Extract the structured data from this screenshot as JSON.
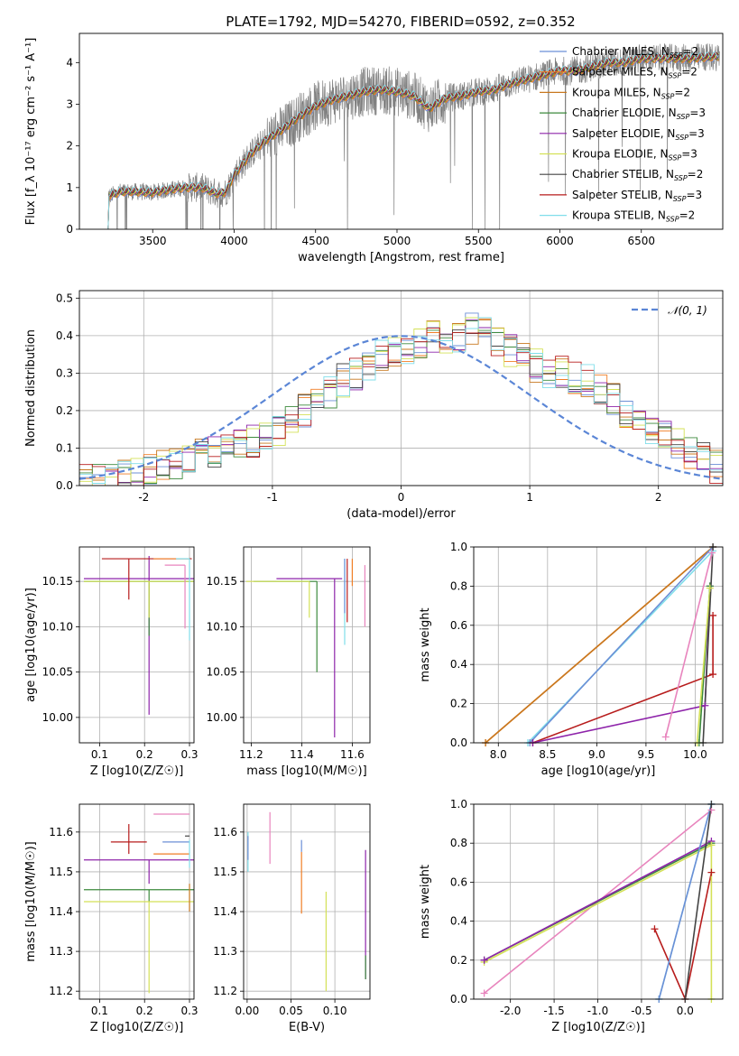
{
  "figure": {
    "title": "PLATE=1792, MJD=54270, FIBERID=0592, z=0.352"
  },
  "colors": {
    "Chabrier MILES": "#6b8fd6",
    "Salpeter MILES": "#f07e26",
    "Kroupa MILES": "#c8781f",
    "Chabrier ELODIE": "#3c8a3c",
    "Salpeter ELODIE": "#8e24aa",
    "Kroupa ELODIE": "#d4e157",
    "Chabrier STELIB": "#444444",
    "Salpeter STELIB": "#b71c1c",
    "Kroupa STELIB": "#80deea",
    "extra": "#e884bd",
    "data": "#808080",
    "normal": "#5b86d6"
  },
  "chart_data": [
    {
      "id": "spectrum",
      "type": "line",
      "title": "PLATE=1792, MJD=54270, FIBERID=0592, z=0.352",
      "xlabel": "wavelength [Angstrom, rest frame]",
      "ylabel": "Flux [f_λ 10⁻¹⁷ erg cm⁻² s⁻¹ A⁻¹]",
      "xlim": [
        3050,
        7000
      ],
      "ylim": [
        0,
        4.7
      ],
      "xticks": [
        3500,
        4000,
        4500,
        5000,
        5500,
        6000,
        6500
      ],
      "yticks": [
        0,
        1,
        2,
        3,
        4
      ],
      "legend_position": "top-right",
      "grid": false,
      "data_start": 3220,
      "data_end": 6980,
      "continuum": [
        [
          3220,
          0.78
        ],
        [
          3300,
          0.9
        ],
        [
          3400,
          0.9
        ],
        [
          3500,
          0.88
        ],
        [
          3600,
          0.95
        ],
        [
          3700,
          1.0
        ],
        [
          3800,
          1.0
        ],
        [
          3900,
          0.85
        ],
        [
          3950,
          0.9
        ],
        [
          4000,
          1.3
        ],
        [
          4100,
          1.8
        ],
        [
          4200,
          2.15
        ],
        [
          4300,
          2.4
        ],
        [
          4400,
          2.7
        ],
        [
          4500,
          2.95
        ],
        [
          4600,
          3.1
        ],
        [
          4700,
          3.2
        ],
        [
          4800,
          3.3
        ],
        [
          4900,
          3.35
        ],
        [
          5000,
          3.3
        ],
        [
          5100,
          3.2
        ],
        [
          5200,
          2.9
        ],
        [
          5300,
          3.15
        ],
        [
          5400,
          3.2
        ],
        [
          5500,
          3.3
        ],
        [
          5600,
          3.35
        ],
        [
          5700,
          3.5
        ],
        [
          5800,
          3.6
        ],
        [
          5900,
          3.7
        ],
        [
          6000,
          3.8
        ],
        [
          6100,
          3.8
        ],
        [
          6200,
          3.9
        ],
        [
          6300,
          4.0
        ],
        [
          6400,
          4.0
        ],
        [
          6500,
          4.1
        ],
        [
          6600,
          4.1
        ],
        [
          6700,
          4.1
        ],
        [
          6800,
          4.1
        ],
        [
          6980,
          4.15
        ]
      ],
      "series": [
        {
          "name": "Chabrier MILES, N_SSP=2"
        },
        {
          "name": "Salpeter MILES, N_SSP=2"
        },
        {
          "name": "Kroupa MILES, N_SSP=2"
        },
        {
          "name": "Chabrier ELODIE, N_SSP=3"
        },
        {
          "name": "Salpeter ELODIE, N_SSP=3"
        },
        {
          "name": "Kroupa ELODIE, N_SSP=3"
        },
        {
          "name": "Chabrier STELIB, N_SSP=2"
        },
        {
          "name": "Salpeter STELIB, N_SSP=3"
        },
        {
          "name": "Kroupa STELIB, N_SSP=2"
        }
      ]
    },
    {
      "id": "residuals",
      "type": "histogram",
      "xlabel": "(data-model)/error",
      "ylabel": "Normed distribution",
      "xlim": [
        -2.5,
        2.5
      ],
      "ylim": [
        0,
        0.52
      ],
      "xticks": [
        -2,
        -1,
        0,
        1,
        2
      ],
      "yticks": [
        0.0,
        0.1,
        0.2,
        0.3,
        0.4,
        0.5
      ],
      "grid": true,
      "legend_position": "top-right",
      "legend_label": "𝒩(0, 1)",
      "bin_width": 0.1,
      "base_profile": [
        0.015,
        0.02,
        0.025,
        0.03,
        0.03,
        0.04,
        0.05,
        0.06,
        0.07,
        0.08,
        0.09,
        0.1,
        0.11,
        0.12,
        0.13,
        0.15,
        0.17,
        0.2,
        0.22,
        0.25,
        0.28,
        0.3,
        0.32,
        0.35,
        0.36,
        0.37,
        0.38,
        0.4,
        0.39,
        0.4,
        0.42,
        0.43,
        0.38,
        0.36,
        0.35,
        0.32,
        0.3,
        0.3,
        0.29,
        0.28,
        0.25,
        0.23,
        0.2,
        0.18,
        0.15,
        0.13,
        0.11,
        0.09,
        0.07,
        0.05
      ]
    },
    {
      "id": "age-vs-Z",
      "type": "errorbar",
      "xlabel": "Z [log10(Z/Z☉)]",
      "ylabel": "age  [log10(age/yr)]",
      "xlim": [
        0.055,
        0.31
      ],
      "ylim": [
        9.972,
        10.188
      ],
      "xticks": [
        0.1,
        0.2,
        0.3
      ],
      "yticks": [
        10.0,
        10.05,
        10.1,
        10.15
      ],
      "grid": true,
      "points": [
        {
          "model": "Salpeter ELODIE",
          "x": 0.21,
          "y": 10.153,
          "xerr": 0.145,
          "yerr": [
            0.15,
            0.025
          ]
        },
        {
          "model": "Chabrier ELODIE",
          "x": 0.21,
          "y": 10.15,
          "xerr": 0.145,
          "yerr": [
            0.06,
            0.0
          ]
        },
        {
          "model": "Kroupa ELODIE",
          "x": 0.21,
          "y": 10.15,
          "xerr": 0.145,
          "yerr": [
            0.04,
            0.0
          ]
        },
        {
          "model": "Salpeter STELIB",
          "x": 0.165,
          "y": 10.175,
          "xerr": [
            0.06,
            0.14
          ],
          "yerr": [
            0.045,
            0.0
          ]
        },
        {
          "model": "Salpeter MILES",
          "x": 0.26,
          "y": 10.175,
          "xerr": [
            0.04,
            0.04
          ],
          "yerr": [
            0.0,
            0.0
          ]
        },
        {
          "model": "extra",
          "x": 0.29,
          "y": 10.168,
          "xerr": [
            0.045,
            0.0
          ],
          "yerr": [
            0.07,
            0.0
          ]
        },
        {
          "model": "Kroupa STELIB",
          "x": 0.3,
          "y": 10.175,
          "xerr": [
            0.03,
            0.0
          ],
          "yerr": [
            0.09,
            0.0
          ]
        }
      ]
    },
    {
      "id": "age-vs-mass",
      "type": "errorbar",
      "xlabel": "mass [log10(M/M☉)]",
      "ylabel": "",
      "xlim": [
        11.17,
        11.67
      ],
      "ylim": [
        9.972,
        10.188
      ],
      "xticks": [
        11.2,
        11.4,
        11.6
      ],
      "yticks": [
        10.0,
        10.05,
        10.1,
        10.15
      ],
      "grid": true,
      "points": [
        {
          "model": "Salpeter ELODIE",
          "x": 11.53,
          "y": 10.153,
          "xerr": [
            0.23,
            0.03
          ],
          "yerr": [
            0.175,
            0.0
          ]
        },
        {
          "model": "Chabrier ELODIE",
          "x": 11.46,
          "y": 10.15,
          "xerr": [
            0.25,
            0.0
          ],
          "yerr": [
            0.1,
            0.0
          ]
        },
        {
          "model": "Kroupa ELODIE",
          "x": 11.43,
          "y": 10.15,
          "xerr": [
            0.25,
            0.0
          ],
          "yerr": [
            0.04,
            0.0
          ]
        },
        {
          "model": "Salpeter STELIB",
          "x": 11.58,
          "y": 10.175,
          "xerr": [
            0.0,
            0.0
          ],
          "yerr": [
            0.07,
            0.0
          ]
        },
        {
          "model": "Salpeter MILES",
          "x": 11.6,
          "y": 10.175,
          "xerr": [
            0.0,
            0.0
          ],
          "yerr": [
            0.03,
            0.0
          ]
        },
        {
          "model": "extra",
          "x": 11.65,
          "y": 10.168,
          "xerr": [
            0.0,
            0.0
          ],
          "yerr": [
            0.068,
            0.0
          ]
        },
        {
          "model": "Kroupa STELIB",
          "x": 11.57,
          "y": 10.175,
          "xerr": [
            0.0,
            0.0
          ],
          "yerr": [
            0.095,
            0.0
          ]
        },
        {
          "model": "Chabrier MILES",
          "x": 11.57,
          "y": 10.175,
          "xerr": [
            0.0,
            0.0
          ],
          "yerr": [
            0.06,
            0.0
          ]
        }
      ]
    },
    {
      "id": "weight-vs-age",
      "type": "line",
      "xlabel": "age  [log10(age/yr)]",
      "ylabel": "mass weight",
      "xlim": [
        7.75,
        10.28
      ],
      "ylim": [
        0.0,
        1.0
      ],
      "xticks": [
        8.0,
        8.5,
        9.0,
        9.5,
        10.0
      ],
      "yticks": [
        0.0,
        0.2,
        0.4,
        0.6,
        0.8,
        1.0
      ],
      "grid": true,
      "series": [
        {
          "model": "Salpeter MILES",
          "x": [
            7.87,
            10.18
          ],
          "y": [
            0.0,
            1.0
          ]
        },
        {
          "model": "Kroupa MILES",
          "x": [
            7.87,
            10.18
          ],
          "y": [
            0.0,
            1.0
          ]
        },
        {
          "model": "Kroupa STELIB",
          "x": [
            8.3,
            10.18
          ],
          "y": [
            0.0,
            0.98
          ]
        },
        {
          "model": "Chabrier MILES",
          "x": [
            8.32,
            10.18
          ],
          "y": [
            0.0,
            1.0
          ]
        },
        {
          "model": "Salpeter STELIB",
          "x": [
            8.35,
            10.18,
            10.18
          ],
          "y": [
            0.0,
            0.35,
            0.65
          ]
        },
        {
          "model": "Salpeter ELODIE",
          "x": [
            8.35,
            10.1,
            10.15
          ],
          "y": [
            0.0,
            0.19,
            0.8
          ]
        },
        {
          "model": "extra",
          "x": [
            9.7,
            10.17
          ],
          "y": [
            0.03,
            0.97
          ]
        },
        {
          "model": "Chabrier ELODIE",
          "x": [
            10.04,
            10.15
          ],
          "y": [
            0.0,
            0.8
          ]
        },
        {
          "model": "Kroupa ELODIE",
          "x": [
            10.02,
            10.15
          ],
          "y": [
            0.0,
            0.79
          ]
        },
        {
          "model": "Chabrier STELIB",
          "x": [
            10.08,
            10.18
          ],
          "y": [
            0.0,
            1.0
          ]
        }
      ]
    },
    {
      "id": "mass-vs-Z",
      "type": "errorbar",
      "xlabel": "Z [log10(Z/Z☉)]",
      "ylabel": "mass [log10(M/M☉)]",
      "xlim": [
        0.055,
        0.31
      ],
      "ylim": [
        11.18,
        11.67
      ],
      "xticks": [
        0.1,
        0.2,
        0.3
      ],
      "yticks": [
        11.2,
        11.3,
        11.4,
        11.5,
        11.6
      ],
      "grid": true,
      "points": [
        {
          "model": "Salpeter ELODIE",
          "x": 0.21,
          "y": 11.53,
          "xerr": 0.145,
          "yerr": [
            0.06,
            0.0
          ]
        },
        {
          "model": "Chabrier ELODIE",
          "x": 0.21,
          "y": 11.455,
          "xerr": 0.145,
          "yerr": [
            0.03,
            0.0
          ]
        },
        {
          "model": "Kroupa ELODIE",
          "x": 0.21,
          "y": 11.425,
          "xerr": 0.145,
          "yerr": [
            0.23,
            0.0
          ]
        },
        {
          "model": "Salpeter STELIB",
          "x": 0.165,
          "y": 11.575,
          "xerr": [
            0.04,
            0.04
          ],
          "yerr": [
            0.03,
            0.045
          ]
        },
        {
          "model": "Salpeter MILES",
          "x": 0.26,
          "y": 11.545,
          "xerr": [
            0.04,
            0.04
          ],
          "yerr": [
            0.0,
            0.0
          ]
        },
        {
          "model": "Chabrier MILES",
          "x": 0.27,
          "y": 11.575,
          "xerr": [
            0.03,
            0.03
          ],
          "yerr": [
            0.0,
            0.0
          ]
        },
        {
          "model": "extra",
          "x": 0.26,
          "y": 11.645,
          "xerr": [
            0.04,
            0.04
          ],
          "yerr": [
            0.0,
            0.0
          ]
        },
        {
          "model": "Kroupa MILES",
          "x": 0.3,
          "y": 11.47,
          "xerr": [
            0.0,
            0.0
          ],
          "yerr": [
            0.07,
            0.0
          ]
        },
        {
          "model": "Kroupa STELIB",
          "x": 0.3,
          "y": 11.58,
          "xerr": [
            0.0,
            0.0
          ],
          "yerr": [
            0.07,
            0.0
          ]
        },
        {
          "model": "Chabrier STELIB",
          "x": 0.3,
          "y": 11.59,
          "xerr": [
            0.01,
            0.0
          ],
          "yerr": [
            0.0,
            0.0
          ]
        }
      ]
    },
    {
      "id": "mass-vs-ebv",
      "type": "errorbar",
      "xlabel": "E(B-V)",
      "ylabel": "",
      "xlim": [
        -0.004,
        0.14
      ],
      "ylim": [
        11.18,
        11.67
      ],
      "xticks": [
        0.0,
        0.05,
        0.1
      ],
      "yticks": [
        11.2,
        11.3,
        11.4,
        11.5,
        11.6
      ],
      "grid": true,
      "points": [
        {
          "model": "Kroupa STELIB",
          "x": 0.001,
          "y": 11.55,
          "xerr": [
            0.0,
            0.0
          ],
          "yerr": [
            0.05,
            0.05
          ]
        },
        {
          "model": "Chabrier MILES",
          "x": 0.001,
          "y": 11.56,
          "xerr": [
            0.0,
            0.0
          ],
          "yerr": [
            0.03,
            0.03
          ]
        },
        {
          "model": "extra",
          "x": 0.026,
          "y": 11.585,
          "xerr": [
            0.0,
            0.0
          ],
          "yerr": [
            0.065,
            0.065
          ]
        },
        {
          "model": "Salpeter MILES",
          "x": 0.062,
          "y": 11.48,
          "xerr": [
            0.0,
            0.0
          ],
          "yerr": [
            0.085,
            0.07
          ]
        },
        {
          "model": "Chabrier MILES",
          "x": 0.062,
          "y": 11.565,
          "xerr": [
            0.0,
            0.0
          ],
          "yerr": [
            0.015,
            0.015
          ]
        },
        {
          "model": "Kroupa ELODIE",
          "x": 0.09,
          "y": 11.32,
          "xerr": [
            0.0,
            0.0
          ],
          "yerr": [
            0.12,
            0.13
          ]
        },
        {
          "model": "Salpeter ELODIE",
          "x": 0.135,
          "y": 11.39,
          "xerr": [
            0.0,
            0.0
          ],
          "yerr": [
            0.16,
            0.165
          ]
        },
        {
          "model": "Chabrier ELODIE",
          "x": 0.135,
          "y": 11.26,
          "xerr": [
            0.0,
            0.0
          ],
          "yerr": [
            0.03,
            0.03
          ]
        }
      ]
    },
    {
      "id": "weight-vs-Z",
      "type": "line",
      "xlabel": "Z [log10(Z/Z☉)]",
      "ylabel": "mass weight",
      "xlim": [
        -2.42,
        0.43
      ],
      "ylim": [
        0.0,
        1.0
      ],
      "xticks": [
        -2.0,
        -1.5,
        -1.0,
        -0.5,
        0.0
      ],
      "yticks": [
        0.0,
        0.2,
        0.4,
        0.6,
        0.8,
        1.0
      ],
      "grid": true,
      "series": [
        {
          "model": "extra",
          "x": [
            -2.3,
            0.3
          ],
          "y": [
            0.03,
            0.97
          ]
        },
        {
          "model": "Chabrier ELODIE",
          "x": [
            -2.3,
            0.3
          ],
          "y": [
            0.2,
            0.8
          ]
        },
        {
          "model": "Kroupa ELODIE",
          "x": [
            -2.3,
            0.3
          ],
          "y": [
            0.19,
            0.79
          ]
        },
        {
          "model": "Salpeter ELODIE",
          "x": [
            -2.3,
            0.3
          ],
          "y": [
            0.2,
            0.81
          ]
        },
        {
          "model": "Salpeter STELIB",
          "x": [
            -0.35,
            0.0,
            0.3
          ],
          "y": [
            0.36,
            0.0,
            0.65
          ]
        },
        {
          "model": "Kroupa STELIB",
          "x": [
            -0.3,
            0.3
          ],
          "y": [
            0.0,
            1.0
          ]
        },
        {
          "model": "Chabrier MILES",
          "x": [
            -0.3,
            0.3
          ],
          "y": [
            0.0,
            1.0
          ]
        },
        {
          "model": "Chabrier STELIB",
          "x": [
            0.0,
            0.3
          ],
          "y": [
            0.0,
            1.0
          ]
        },
        {
          "model": "Kroupa ELODIE",
          "x": [
            0.3,
            0.3
          ],
          "y": [
            0.0,
            0.79
          ]
        }
      ]
    }
  ]
}
